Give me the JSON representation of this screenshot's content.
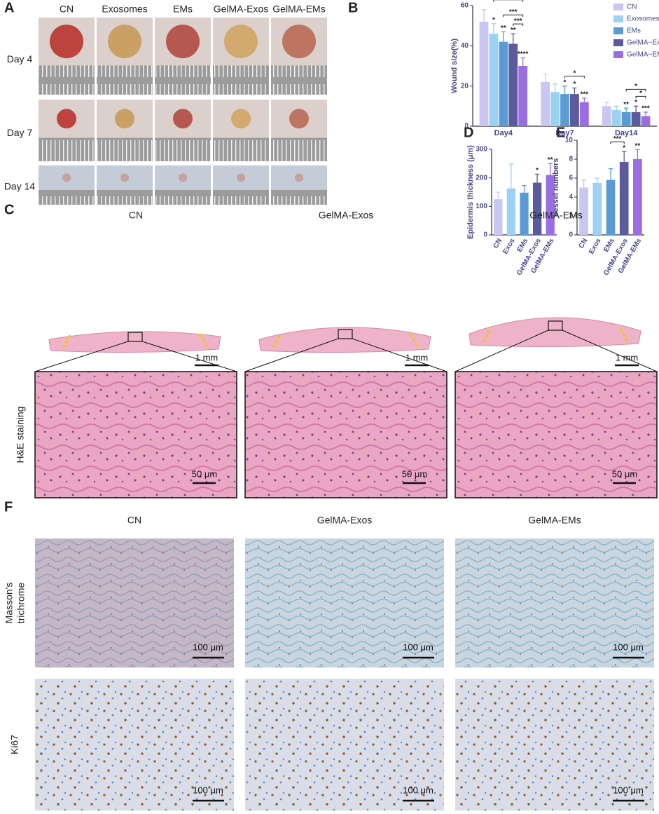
{
  "panels": {
    "A": {
      "label": "A",
      "columns": [
        "CN",
        "Exosomes",
        "EMs",
        "GelMA-Exos",
        "GelMA-EMs"
      ],
      "rows": [
        "Day 4",
        "Day 7",
        "Day 14"
      ]
    },
    "B": {
      "label": "B"
    },
    "D": {
      "label": "D"
    },
    "E": {
      "label": "E"
    },
    "C": {
      "label": "C",
      "columns": [
        "CN",
        "GelMA-Exos",
        "GelMA-EMs"
      ],
      "row_label": "H&E staining",
      "overview_scale_labels": [
        "1 mm",
        "1 mm",
        "1 mm"
      ],
      "detail_scale_labels": [
        "50 μm",
        "50 μm",
        "50 μm"
      ]
    },
    "F": {
      "label": "F",
      "columns": [
        "CN",
        "GelMA-Exos",
        "GelMA-EMs"
      ],
      "rows": [
        [
          "Masson's",
          "trichrome"
        ],
        [
          "Ki67"
        ]
      ],
      "scale_labels": [
        [
          "100 μm",
          "100 μm",
          "100 μm"
        ],
        [
          "100 μm",
          "100 μm",
          "100 μm"
        ]
      ]
    }
  },
  "chart_data": [
    {
      "type": "bar",
      "y_label": "Wound size(%)",
      "categories": [
        "Day4",
        "Day7",
        "Day14"
      ],
      "ylim": [
        0,
        60
      ],
      "yticks": [
        0,
        20,
        40,
        60
      ],
      "legend": "top-right",
      "series": [
        {
          "name": "CN",
          "color": "#c9c6f2",
          "values": [
            52,
            22,
            10
          ],
          "errors": [
            6,
            4,
            2
          ],
          "stars": [
            null,
            null,
            null
          ]
        },
        {
          "name": "Exosomes",
          "color": "#9bd2f3",
          "values": [
            46,
            17,
            8
          ],
          "errors": [
            5,
            4,
            2
          ],
          "stars": [
            "*",
            null,
            null
          ]
        },
        {
          "name": "EMs",
          "color": "#5b9bd5",
          "values": [
            42,
            16,
            7
          ],
          "errors": [
            5,
            4,
            2
          ],
          "stars": [
            "**",
            "*",
            "**"
          ]
        },
        {
          "name": "GelMA−Exos",
          "color": "#5a5a9c",
          "values": [
            41,
            16,
            7
          ],
          "errors": [
            5,
            3,
            3
          ],
          "stars": [
            "**",
            "*",
            "*"
          ]
        },
        {
          "name": "GelMA−EMs",
          "color": "#9a6ee0",
          "values": [
            30,
            12,
            5
          ],
          "errors": [
            4,
            2,
            2
          ],
          "stars": [
            "****",
            "***",
            "***"
          ]
        }
      ],
      "brackets": [
        {
          "category": "Day4",
          "between": [
            "GelMA−Exos",
            "GelMA−EMs"
          ],
          "label": "***"
        },
        {
          "category": "Day4",
          "between": [
            "EMs",
            "GelMA−EMs"
          ],
          "label": "***"
        },
        {
          "category": "Day4",
          "between": [
            "Exosomes",
            "GelMA−EMs"
          ],
          "label": "***"
        },
        {
          "category": "Day7",
          "between": [
            "EMs",
            "GelMA−EMs"
          ],
          "label": "*"
        },
        {
          "category": "Day14",
          "between": [
            "GelMA−Exos",
            "GelMA−EMs"
          ],
          "label": "*"
        },
        {
          "category": "Day14",
          "between": [
            "EMs",
            "GelMA−EMs"
          ],
          "label": "*"
        }
      ]
    },
    {
      "type": "bar",
      "y_label": "Epidermis thickness (μm)",
      "categories": [
        "CN",
        "Exos",
        "EMs",
        "GelMA-Exos",
        "GelMA-EMs"
      ],
      "values": [
        125,
        163,
        148,
        183,
        210
      ],
      "errors": [
        25,
        85,
        25,
        30,
        40
      ],
      "stars": [
        null,
        null,
        null,
        "*",
        "**"
      ],
      "colors": [
        "#c9c6f2",
        "#9bd2f3",
        "#5b9bd5",
        "#5a5a9c",
        "#9a6ee0"
      ],
      "ylim": [
        0,
        300
      ],
      "yticks": [
        0,
        100,
        200,
        300
      ],
      "brackets": []
    },
    {
      "type": "bar",
      "y_label": "Vessel numbers",
      "categories": [
        "CN",
        "Exos",
        "EMs",
        "GelMA-Exos",
        "GelMA-EMs"
      ],
      "values": [
        5.0,
        5.5,
        5.8,
        7.7,
        8.0
      ],
      "errors": [
        0.8,
        0.5,
        1.2,
        1.1,
        1.0
      ],
      "stars": [
        null,
        null,
        null,
        "*",
        "**"
      ],
      "colors": [
        "#c9c6f2",
        "#9bd2f3",
        "#5b9bd5",
        "#5a5a9c",
        "#9a6ee0"
      ],
      "ylim": [
        0,
        10
      ],
      "yticks": [
        0,
        2,
        4,
        6,
        8,
        10
      ],
      "brackets": [
        {
          "between": [
            "EMs",
            "GelMA-Exos"
          ],
          "label": "***"
        }
      ]
    }
  ]
}
